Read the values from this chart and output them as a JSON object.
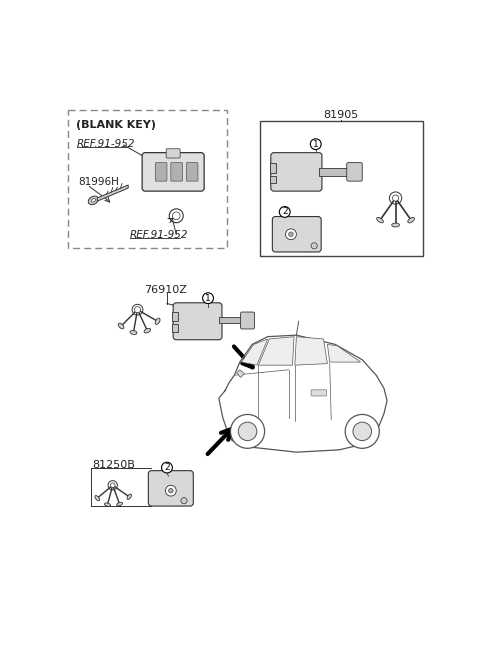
{
  "bg_color": "#ffffff",
  "line_color": "#333333",
  "text_color": "#222222",
  "blank_key_label": "(BLANK KEY)",
  "ref1": "REF.91-952",
  "ref2": "REF.91-952",
  "part_81996H": "81996H",
  "part_81905": "81905",
  "part_76910Z": "76910Z",
  "part_81250B": "81250B",
  "callout1": "1",
  "callout2": "2"
}
